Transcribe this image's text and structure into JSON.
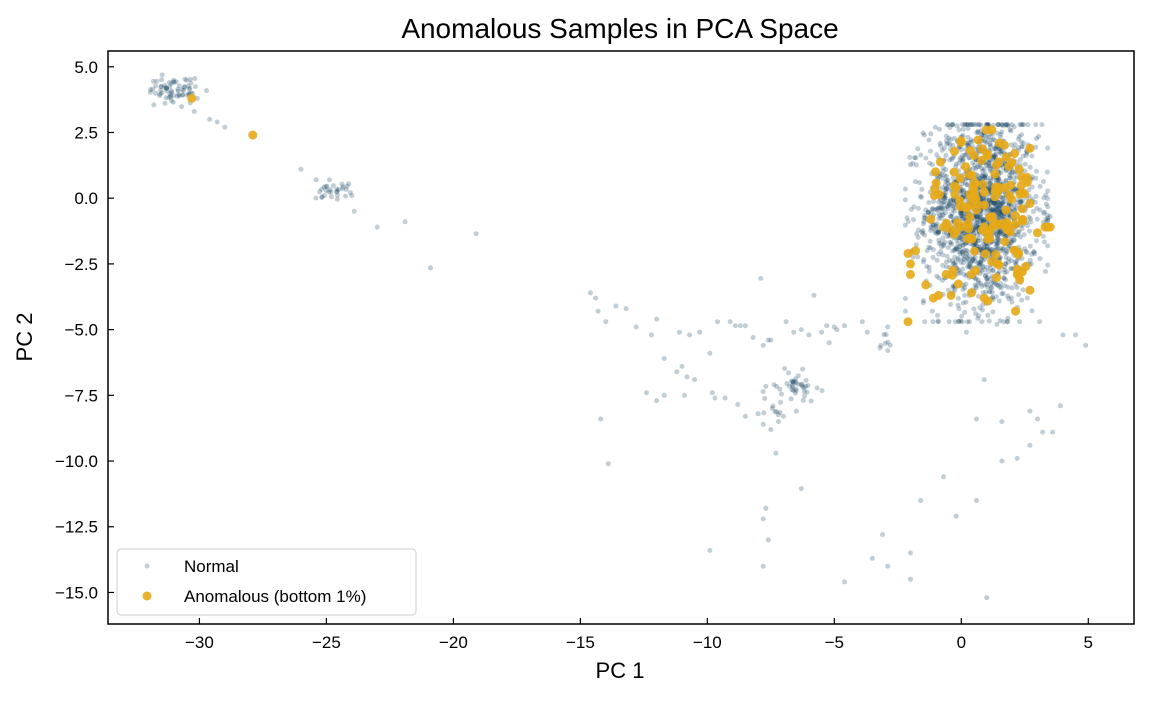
{
  "chart_data": {
    "type": "scatter",
    "title": "Anomalous Samples in PCA Space",
    "xlabel": "PC 1",
    "ylabel": "PC 2",
    "xlim": [
      -33.6,
      6.8
    ],
    "ylim": [
      -16.2,
      5.6
    ],
    "xticks": [
      -30,
      -25,
      -20,
      -15,
      -10,
      -5,
      0,
      5
    ],
    "xtick_labels": [
      "−30",
      "−25",
      "−20",
      "−15",
      "−10",
      "−5",
      "0",
      "5"
    ],
    "yticks": [
      5.0,
      2.5,
      0.0,
      -2.5,
      -5.0,
      -7.5,
      -10.0,
      -12.5,
      -15.0
    ],
    "ytick_labels": [
      "5.0",
      "2.5",
      "0.0",
      "−2.5",
      "−5.0",
      "−7.5",
      "−10.0",
      "−12.5",
      "−15.0"
    ],
    "grid": false,
    "legend_position": "lower-left",
    "series": [
      {
        "name": "Normal",
        "color": "#0b3c5d",
        "alpha": 0.25,
        "marker_size": "small",
        "clusters": [
          {
            "cx": 0.8,
            "cy": -0.5,
            "sx": 1.1,
            "sy": 1.8,
            "n": 1600,
            "xmin": -2.2,
            "xmax": 3.4,
            "ymin": -4.7,
            "ymax": 2.8
          },
          {
            "cx": -31.0,
            "cy": 4.1,
            "sx": 0.5,
            "sy": 0.25,
            "n": 70
          },
          {
            "cx": -24.8,
            "cy": 0.35,
            "sx": 0.35,
            "sy": 0.2,
            "n": 30
          },
          {
            "cx": -6.5,
            "cy": -7.1,
            "sx": 0.4,
            "sy": 0.25,
            "n": 40
          },
          {
            "cx": -7.2,
            "cy": -7.9,
            "sx": 0.4,
            "sy": 0.35,
            "n": 12
          },
          {
            "cx": -3.0,
            "cy": -5.4,
            "sx": 0.15,
            "sy": 0.2,
            "n": 6
          }
        ],
        "points": [
          {
            "x": -29.6,
            "y": 3.0
          },
          {
            "x": -29.3,
            "y": 2.9
          },
          {
            "x": -29.0,
            "y": 2.7
          },
          {
            "x": -30.2,
            "y": 3.3
          },
          {
            "x": -26.0,
            "y": 1.1
          },
          {
            "x": -25.4,
            "y": 0.7
          },
          {
            "x": -24.0,
            "y": 0.1
          },
          {
            "x": -23.9,
            "y": -0.5
          },
          {
            "x": -23.0,
            "y": -1.1
          },
          {
            "x": -21.9,
            "y": -0.9
          },
          {
            "x": -20.9,
            "y": -2.65
          },
          {
            "x": -19.1,
            "y": -1.35
          },
          {
            "x": -14.6,
            "y": -3.6
          },
          {
            "x": -14.4,
            "y": -3.8
          },
          {
            "x": -14.3,
            "y": -4.3
          },
          {
            "x": -14.0,
            "y": -4.7
          },
          {
            "x": -13.6,
            "y": -4.1
          },
          {
            "x": -13.2,
            "y": -4.2
          },
          {
            "x": -12.8,
            "y": -4.9
          },
          {
            "x": -12.2,
            "y": -5.2
          },
          {
            "x": -12.0,
            "y": -4.6
          },
          {
            "x": -11.7,
            "y": -6.1
          },
          {
            "x": -11.2,
            "y": -6.6
          },
          {
            "x": -11.0,
            "y": -6.4
          },
          {
            "x": -10.8,
            "y": -6.8
          },
          {
            "x": -10.5,
            "y": -6.9
          },
          {
            "x": -11.1,
            "y": -5.1
          },
          {
            "x": -10.7,
            "y": -5.2
          },
          {
            "x": -10.3,
            "y": -5.1
          },
          {
            "x": -9.9,
            "y": -5.9
          },
          {
            "x": -9.6,
            "y": -4.7
          },
          {
            "x": -9.1,
            "y": -4.7
          },
          {
            "x": -8.9,
            "y": -4.85
          },
          {
            "x": -8.7,
            "y": -4.85
          },
          {
            "x": -8.5,
            "y": -4.85
          },
          {
            "x": -8.2,
            "y": -5.3
          },
          {
            "x": -7.9,
            "y": -3.05
          },
          {
            "x": -7.8,
            "y": -5.6
          },
          {
            "x": -7.6,
            "y": -5.4
          },
          {
            "x": -7.5,
            "y": -5.4
          },
          {
            "x": -6.9,
            "y": -4.7
          },
          {
            "x": -6.6,
            "y": -5.1
          },
          {
            "x": -6.3,
            "y": -5.0
          },
          {
            "x": -6.0,
            "y": -5.2
          },
          {
            "x": -5.8,
            "y": -3.7
          },
          {
            "x": -5.5,
            "y": -5.1
          },
          {
            "x": -5.3,
            "y": -4.85
          },
          {
            "x": -5.2,
            "y": -5.5
          },
          {
            "x": -5.0,
            "y": -4.9
          },
          {
            "x": -4.9,
            "y": -5.0
          },
          {
            "x": -4.6,
            "y": -4.85
          },
          {
            "x": -12.4,
            "y": -7.4
          },
          {
            "x": -12.0,
            "y": -7.7
          },
          {
            "x": -11.7,
            "y": -7.5
          },
          {
            "x": -10.9,
            "y": -7.5
          },
          {
            "x": -9.8,
            "y": -7.4
          },
          {
            "x": -9.7,
            "y": -7.6
          },
          {
            "x": -9.3,
            "y": -7.6
          },
          {
            "x": -8.8,
            "y": -7.85
          },
          {
            "x": -8.5,
            "y": -8.3
          },
          {
            "x": -8.0,
            "y": -8.2
          },
          {
            "x": -7.8,
            "y": -8.6
          },
          {
            "x": -7.5,
            "y": -8.8
          },
          {
            "x": -7.2,
            "y": -8.5
          },
          {
            "x": -7.0,
            "y": -8.3
          },
          {
            "x": -7.3,
            "y": -9.7
          },
          {
            "x": -14.2,
            "y": -8.4
          },
          {
            "x": -13.9,
            "y": -10.1
          },
          {
            "x": -6.3,
            "y": -11.05
          },
          {
            "x": -7.7,
            "y": -11.8
          },
          {
            "x": -7.8,
            "y": -12.2
          },
          {
            "x": -7.6,
            "y": -13.0
          },
          {
            "x": -7.8,
            "y": -14.0
          },
          {
            "x": -9.9,
            "y": -13.4
          },
          {
            "x": -4.6,
            "y": -14.6
          },
          {
            "x": -3.5,
            "y": -13.7
          },
          {
            "x": -3.1,
            "y": -12.8
          },
          {
            "x": -2.9,
            "y": -14.0
          },
          {
            "x": -2.0,
            "y": -13.5
          },
          {
            "x": -2.0,
            "y": -14.5
          },
          {
            "x": -1.6,
            "y": -11.5
          },
          {
            "x": -0.7,
            "y": -10.6
          },
          {
            "x": -0.2,
            "y": -12.1
          },
          {
            "x": 0.6,
            "y": -11.5
          },
          {
            "x": 1.0,
            "y": -15.2
          },
          {
            "x": 0.9,
            "y": -6.9
          },
          {
            "x": 0.6,
            "y": -8.4
          },
          {
            "x": 1.6,
            "y": -8.5
          },
          {
            "x": 1.6,
            "y": -10.0
          },
          {
            "x": 2.2,
            "y": -9.9
          },
          {
            "x": 2.7,
            "y": -8.1
          },
          {
            "x": 2.7,
            "y": -9.4
          },
          {
            "x": 3.0,
            "y": -8.4
          },
          {
            "x": 3.2,
            "y": -8.9
          },
          {
            "x": 3.6,
            "y": -8.9
          },
          {
            "x": 3.9,
            "y": -7.9
          },
          {
            "x": 4.0,
            "y": -5.2
          },
          {
            "x": 4.5,
            "y": -5.2
          },
          {
            "x": 4.9,
            "y": -5.6
          },
          {
            "x": -3.9,
            "y": -4.7
          },
          {
            "x": -3.7,
            "y": -5.1
          },
          {
            "x": -2.9,
            "y": -4.9
          },
          {
            "x": -3.2,
            "y": -5.7
          },
          {
            "x": -2.9,
            "y": -5.8
          },
          {
            "x": 3.5,
            "y": -0.7
          },
          {
            "x": 3.3,
            "y": -1.0
          },
          {
            "x": 3.1,
            "y": -2.3
          },
          {
            "x": 2.6,
            "y": -3.8
          },
          {
            "x": 1.4,
            "y": -4.8
          },
          {
            "x": 0.2,
            "y": -5.1
          }
        ]
      },
      {
        "name": "Anomalous (bottom 1%)",
        "color": "#e6a817",
        "alpha": 0.9,
        "marker_size": "large",
        "clusters": [
          {
            "cx": 0.9,
            "cy": -0.4,
            "sx": 0.95,
            "sy": 1.5,
            "n": 120,
            "xmin": -1.8,
            "xmax": 3.0,
            "ymin": -4.3,
            "ymax": 2.6
          }
        ],
        "points": [
          {
            "x": -30.3,
            "y": 3.8
          },
          {
            "x": -27.9,
            "y": 2.4
          },
          {
            "x": -2.1,
            "y": -4.7
          },
          {
            "x": -2.1,
            "y": -2.1
          },
          {
            "x": -2.0,
            "y": -2.5
          },
          {
            "x": -2.0,
            "y": -2.9
          },
          {
            "x": -1.8,
            "y": -2.0
          },
          {
            "x": -1.4,
            "y": -3.3
          },
          {
            "x": -1.1,
            "y": -3.8
          },
          {
            "x": -1.2,
            "y": -0.8
          },
          {
            "x": -0.9,
            "y": -3.7
          },
          {
            "x": -0.6,
            "y": -2.9
          },
          {
            "x": -0.4,
            "y": -3.7
          },
          {
            "x": -0.7,
            "y": -1.1
          },
          {
            "x": -0.2,
            "y": 0.4
          },
          {
            "x": 0.3,
            "y": 0.9
          },
          {
            "x": 0.4,
            "y": -3.6
          },
          {
            "x": 0.4,
            "y": -2.9
          },
          {
            "x": 0.9,
            "y": -3.8
          },
          {
            "x": 1.2,
            "y": 2.6
          },
          {
            "x": 1.5,
            "y": 2.1
          },
          {
            "x": 2.1,
            "y": 1.7
          },
          {
            "x": 2.7,
            "y": 1.9
          },
          {
            "x": 2.4,
            "y": -0.4
          },
          {
            "x": 2.7,
            "y": -0.2
          },
          {
            "x": 2.6,
            "y": 0.6
          },
          {
            "x": 2.2,
            "y": -2.7
          },
          {
            "x": 2.3,
            "y": -3.1
          },
          {
            "x": 2.4,
            "y": -2.8
          },
          {
            "x": 2.2,
            "y": -2.9
          },
          {
            "x": 2.7,
            "y": -3.5
          },
          {
            "x": 3.3,
            "y": -1.1
          },
          {
            "x": 3.4,
            "y": -1.1
          },
          {
            "x": 3.5,
            "y": -1.1
          }
        ]
      }
    ]
  }
}
